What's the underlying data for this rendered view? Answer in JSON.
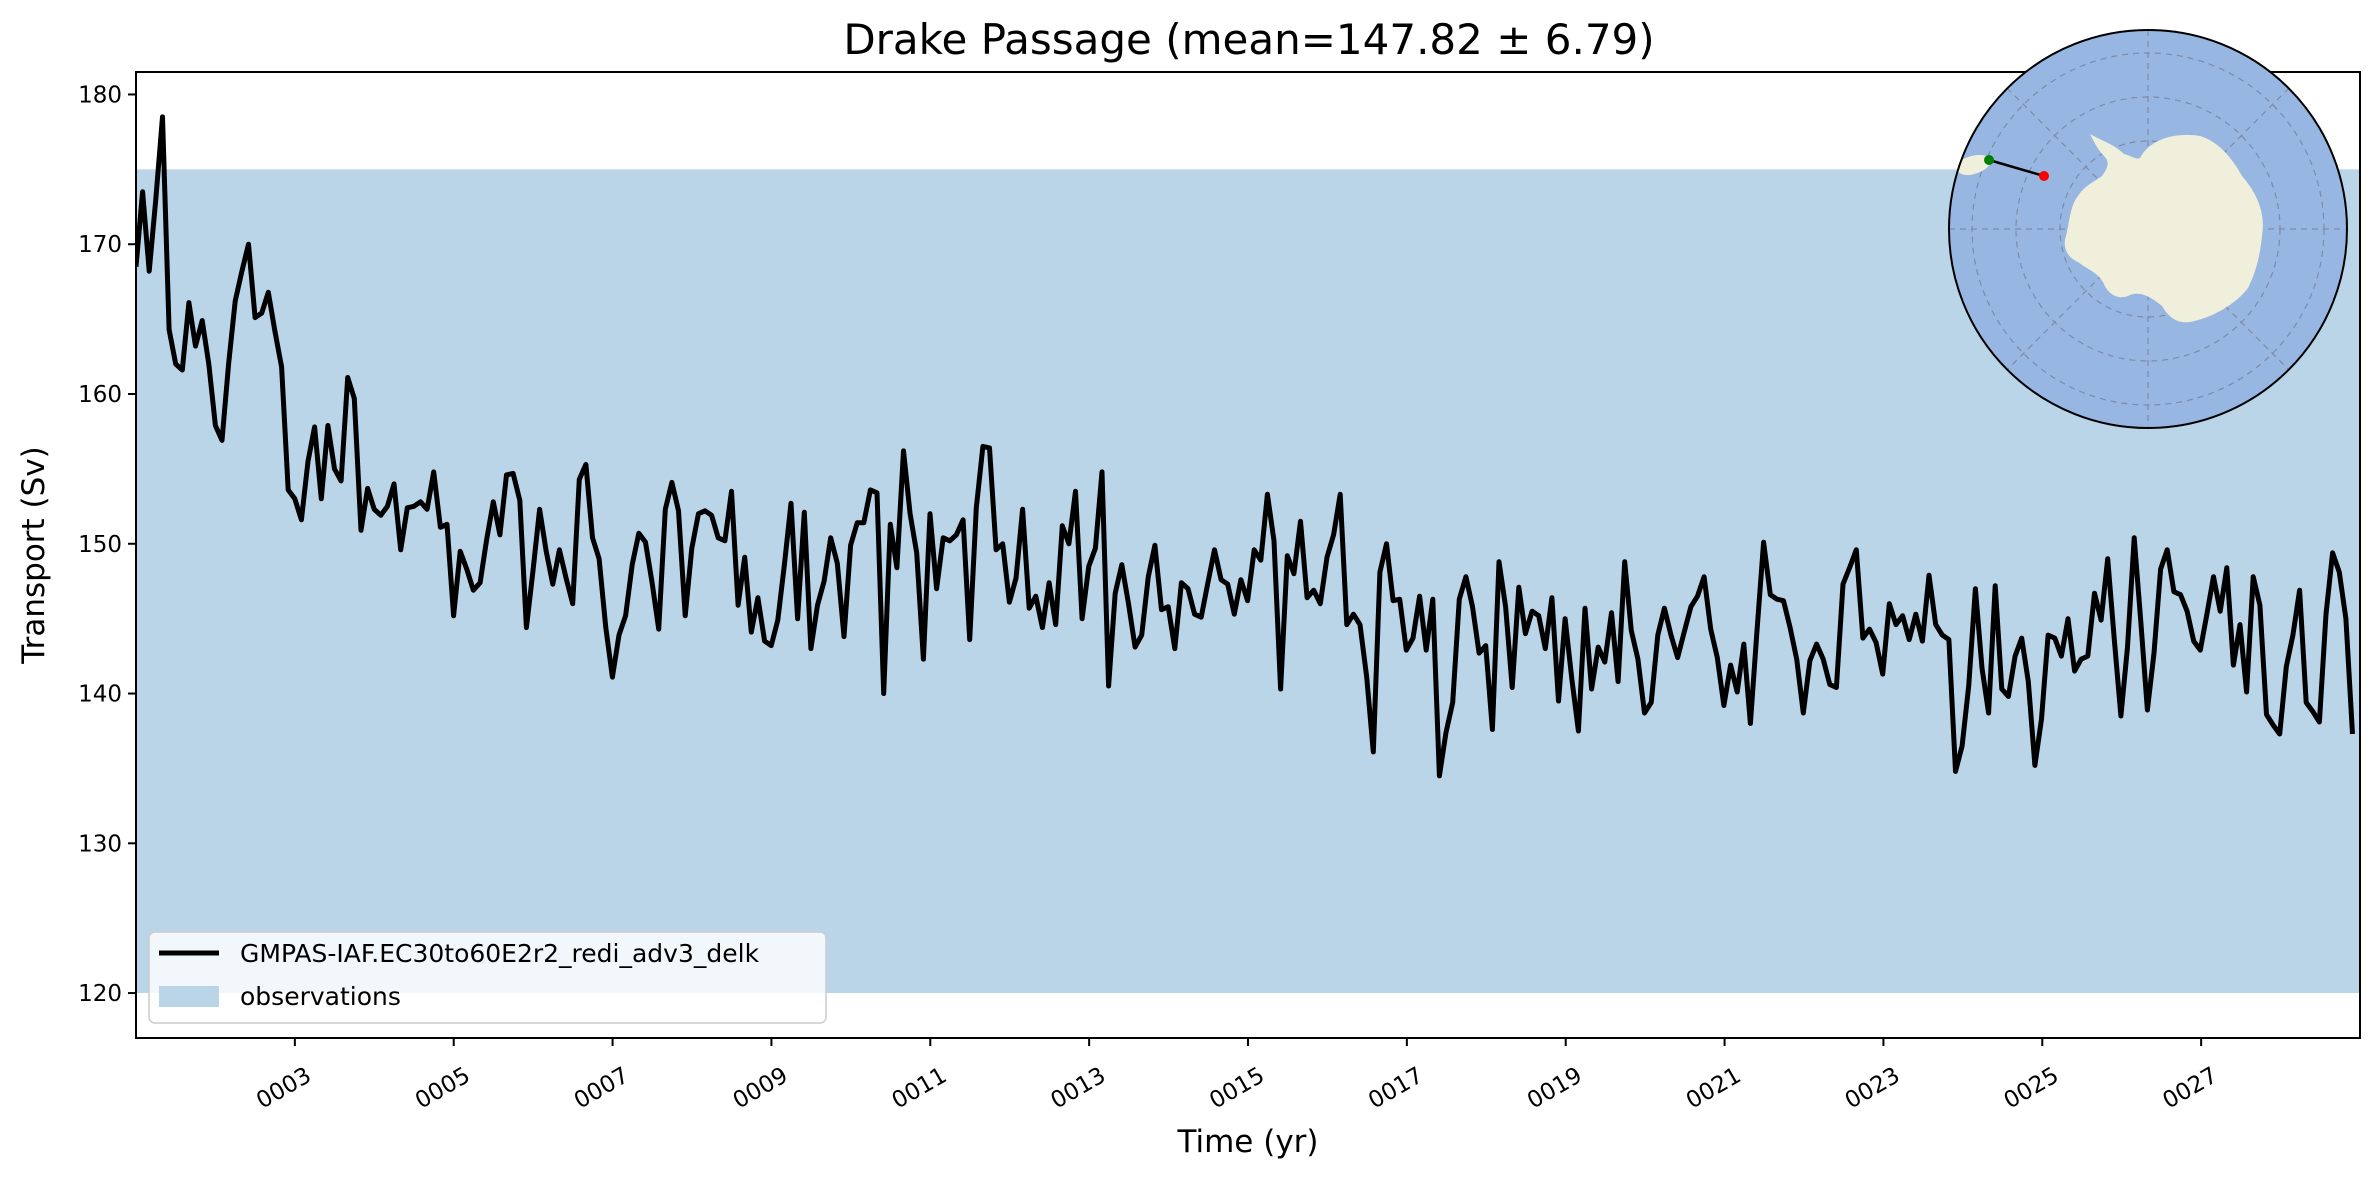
{
  "chart_data": {
    "type": "line",
    "title": "Drake Passage (mean=147.82 ± 6.79)",
    "xlabel": "Time (yr)",
    "ylabel": "Transport (Sv)",
    "xlim": [
      1,
      29
    ],
    "ylim": [
      117,
      181.5
    ],
    "x_ticks": [
      3,
      5,
      7,
      9,
      11,
      13,
      15,
      17,
      19,
      21,
      23,
      25,
      27
    ],
    "x_tick_labels": [
      "0003",
      "0005",
      "0007",
      "0009",
      "0011",
      "0013",
      "0015",
      "0017",
      "0019",
      "0021",
      "0023",
      "0025",
      "0027"
    ],
    "y_ticks": [
      120,
      130,
      140,
      150,
      160,
      170,
      180
    ],
    "y_tick_labels": [
      "120",
      "130",
      "140",
      "150",
      "160",
      "170",
      "180"
    ],
    "observations": {
      "name": "observations",
      "range": [
        120,
        175
      ],
      "color": "#bad4e8"
    },
    "series": [
      {
        "name": "GMPAS-IAF.EC30to60E2r2_redi_adv3_delk",
        "color": "#000000",
        "x_start": 1.0,
        "x_step": 0.0833,
        "values": [
          168.5,
          173.5,
          168.2,
          173.0,
          178.5,
          164.3,
          162.0,
          161.6,
          166.1,
          163.2,
          164.9,
          162.0,
          157.9,
          156.9,
          162.0,
          166.2,
          168.2,
          170.0,
          165.1,
          165.4,
          166.8,
          164.2,
          161.8,
          153.6,
          153.0,
          151.6,
          155.5,
          157.8,
          153.0,
          157.9,
          155.0,
          154.2,
          161.1,
          159.7,
          150.9,
          153.7,
          152.3,
          151.9,
          152.5,
          154.0,
          149.6,
          152.4,
          152.5,
          152.8,
          152.3,
          154.8,
          151.1,
          151.3,
          145.2,
          149.5,
          148.3,
          146.9,
          147.4,
          150.3,
          152.8,
          150.6,
          154.6,
          154.7,
          152.9,
          144.4,
          148.2,
          152.3,
          149.5,
          147.3,
          149.6,
          147.7,
          146.0,
          154.3,
          155.3,
          150.4,
          149.0,
          144.4,
          141.1,
          143.9,
          145.2,
          148.6,
          150.7,
          150.1,
          147.4,
          144.3,
          152.3,
          154.1,
          152.2,
          145.2,
          149.7,
          152.0,
          152.2,
          151.9,
          150.4,
          150.2,
          153.5,
          145.9,
          149.1,
          144.1,
          146.4,
          143.5,
          143.2,
          144.9,
          148.6,
          152.7,
          145.0,
          152.1,
          143.0,
          145.9,
          147.5,
          150.4,
          148.7,
          143.8,
          149.9,
          151.4,
          151.4,
          153.6,
          153.4,
          140.0,
          151.3,
          148.4,
          156.2,
          152.0,
          149.4,
          142.3,
          152.0,
          147.0,
          150.4,
          150.2,
          150.6,
          151.6,
          143.6,
          152.4,
          156.5,
          156.4,
          149.6,
          150.0,
          146.1,
          147.7,
          152.3,
          145.7,
          146.5,
          144.4,
          147.4,
          144.6,
          151.2,
          150.0,
          153.5,
          145.0,
          148.5,
          149.7,
          154.8,
          140.5,
          146.7,
          148.6,
          146.0,
          143.1,
          143.9,
          147.8,
          149.9,
          145.6,
          145.8,
          143.0,
          147.4,
          147.0,
          145.3,
          145.1,
          147.4,
          149.6,
          147.6,
          147.3,
          145.3,
          147.6,
          146.2,
          149.6,
          148.9,
          153.3,
          150.2,
          140.3,
          149.2,
          148.0,
          151.5,
          146.4,
          146.9,
          146.0,
          149.1,
          150.6,
          153.3,
          144.6,
          145.3,
          144.6,
          141.1,
          136.1,
          148.1,
          150.0,
          146.2,
          146.3,
          142.9,
          143.7,
          146.5,
          142.9,
          146.3,
          134.5,
          137.4,
          139.4,
          146.3,
          147.8,
          145.8,
          142.7,
          143.2,
          137.6,
          148.8,
          145.8,
          140.4,
          147.1,
          144.0,
          145.5,
          145.2,
          143.0,
          146.4,
          139.5,
          145.0,
          141.0,
          137.5,
          145.7,
          140.3,
          143.1,
          142.1,
          145.4,
          140.8,
          148.8,
          144.2,
          142.3,
          138.7,
          139.4,
          143.9,
          145.7,
          143.9,
          142.4,
          144.1,
          145.8,
          146.5,
          147.8,
          144.3,
          142.4,
          139.2,
          141.9,
          140.1,
          143.3,
          138.0,
          144.2,
          150.1,
          146.6,
          146.3,
          146.2,
          144.4,
          142.3,
          138.7,
          142.2,
          143.3,
          142.3,
          140.6,
          140.4,
          147.3,
          148.4,
          149.6,
          143.7,
          144.3,
          143.4,
          141.3,
          146.0,
          144.6,
          145.2,
          143.6,
          145.3,
          143.5,
          147.9,
          144.6,
          143.9,
          143.6,
          134.8,
          136.5,
          140.5,
          147.0,
          141.7,
          138.7,
          147.2,
          140.3,
          139.8,
          142.5,
          143.7,
          140.8,
          135.2,
          138.3,
          143.9,
          143.7,
          142.5,
          145.0,
          141.5,
          142.3,
          142.5,
          146.7,
          144.9,
          149.0,
          143.6,
          138.5,
          143.1,
          150.4,
          144.8,
          138.9,
          142.7,
          148.3,
          149.6,
          146.8,
          146.6,
          145.5,
          143.5,
          142.9,
          145.3,
          147.8,
          145.5,
          148.4,
          141.9,
          144.6,
          140.1,
          147.8,
          145.9,
          138.6,
          137.9,
          137.3,
          141.8,
          143.9,
          146.9,
          139.4,
          138.8,
          138.1,
          145.3,
          149.4,
          148.1,
          145.0,
          137.3
        ]
      }
    ],
    "legend": {
      "position": "lower-left",
      "entries": [
        "GMPAS-IAF.EC30to60E2r2_redi_adv3_delk",
        "observations"
      ]
    }
  },
  "inset_map": {
    "projection": "south-polar-stereographic",
    "ocean_color": "#97b6e1",
    "land_color": "#efefdb",
    "transect_start_color": "#008000",
    "transect_end_color": "#ff0000"
  }
}
